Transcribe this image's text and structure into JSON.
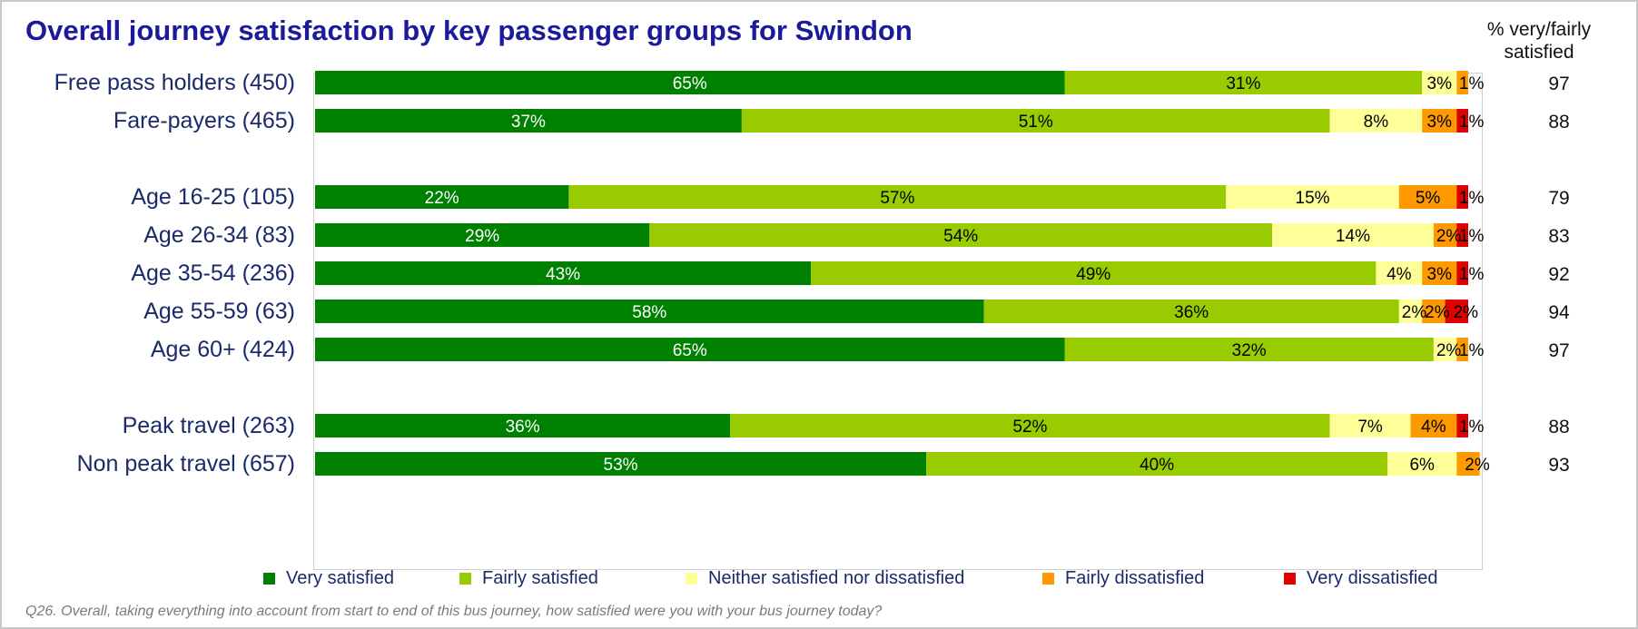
{
  "title": "Overall journey satisfaction by key passenger groups for Swindon",
  "pct_header": [
    "% very/fairly",
    "satisfied"
  ],
  "footnote": "Q26.  Overall, taking everything into account from start to end of this bus journey, how satisfied were you with your bus journey today?",
  "colors": {
    "very_satisfied": "#008000",
    "fairly_satisfied": "#99cc00",
    "neither": "#ffff99",
    "fairly_dissatisfied": "#ff9900",
    "very_dissatisfied": "#e00000"
  },
  "chart_data": {
    "type": "bar",
    "orientation": "horizontal",
    "stacked": true,
    "percent_scale": true,
    "xlim": [
      0,
      100
    ],
    "categories": [
      "Free pass holders (450)",
      "Fare-payers (465)",
      "Age 16-25 (105)",
      "Age 26-34 (83)",
      "Age 35-54 (236)",
      "Age 55-59 (63)",
      "Age 60+ (424)",
      "Peak travel (263)",
      "Non peak travel (657)"
    ],
    "groups": [
      [
        0,
        1
      ],
      [
        2,
        3,
        4,
        5,
        6
      ],
      [
        7,
        8
      ]
    ],
    "series": [
      {
        "name": "Very satisfied",
        "color": "#008000",
        "values": [
          65,
          37,
          22,
          29,
          43,
          58,
          65,
          36,
          53
        ]
      },
      {
        "name": "Fairly satisfied",
        "color": "#99cc00",
        "values": [
          31,
          51,
          57,
          54,
          49,
          36,
          32,
          52,
          40
        ]
      },
      {
        "name": "Neither satisfied nor dissatisfied",
        "color": "#ffff99",
        "values": [
          3,
          8,
          15,
          14,
          4,
          2,
          2,
          7,
          6
        ]
      },
      {
        "name": "Fairly dissatisfied",
        "color": "#ff9900",
        "values": [
          1,
          3,
          5,
          2,
          3,
          2,
          1,
          4,
          2
        ]
      },
      {
        "name": "Very dissatisfied",
        "color": "#e00000",
        "values": [
          0,
          1,
          1,
          1,
          1,
          2,
          0,
          1,
          0
        ]
      }
    ],
    "data_labels": [
      [
        "65%",
        "31%",
        "3%",
        "1%",
        ""
      ],
      [
        "37%",
        "51%",
        "8%",
        "3%",
        "1%"
      ],
      [
        "22%",
        "57%",
        "15%",
        "5%",
        "1%"
      ],
      [
        "29%",
        "54%",
        "14%",
        "2%",
        "1%"
      ],
      [
        "43%",
        "49%",
        "4%",
        "3%",
        "1%"
      ],
      [
        "58%",
        "36%",
        "2%",
        "2%",
        "2%"
      ],
      [
        "65%",
        "32%",
        "2%",
        "1%",
        ""
      ],
      [
        "36%",
        "52%",
        "7%",
        "4%",
        "1%"
      ],
      [
        "53%",
        "40%",
        "6%",
        "2%",
        ""
      ]
    ],
    "satisfied_pct": [
      97,
      88,
      79,
      83,
      92,
      94,
      97,
      88,
      93
    ],
    "legend_position": "bottom",
    "grid": false
  }
}
